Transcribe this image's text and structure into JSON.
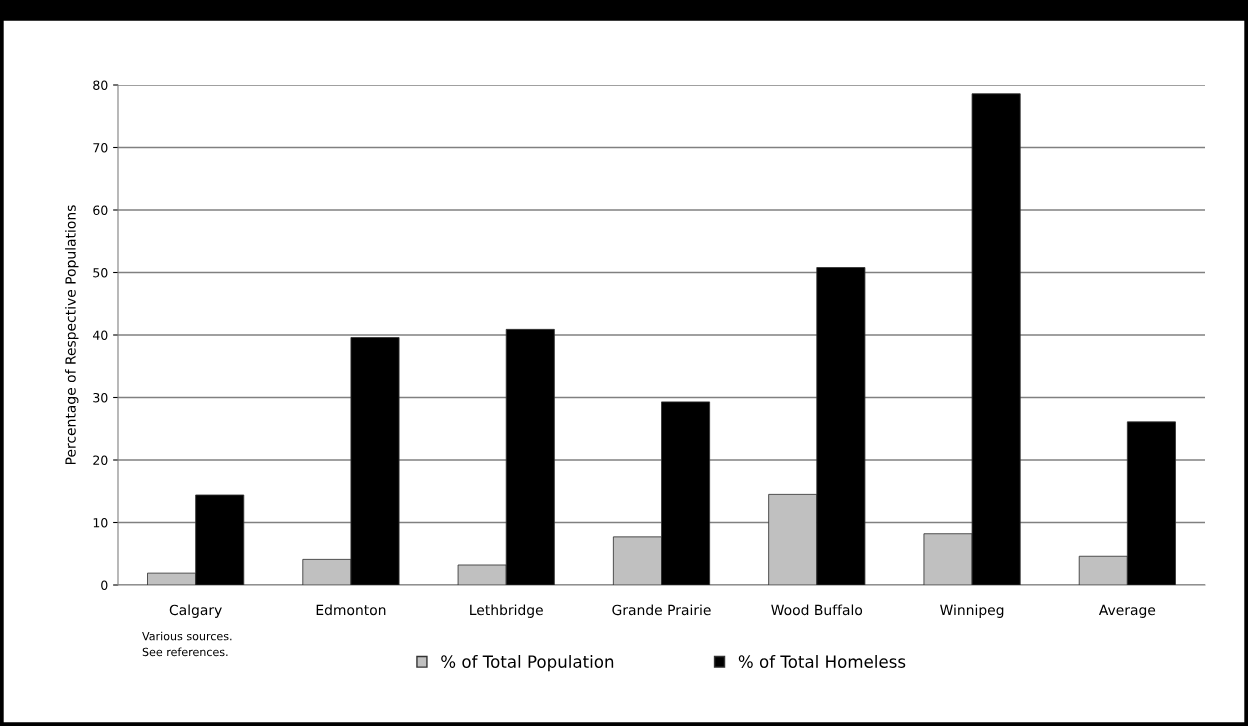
{
  "chart_data": {
    "type": "bar",
    "ylabel": "Percentage of Respective Populations",
    "categories": [
      "Calgary",
      "Edmonton",
      "Lethbridge",
      "Grande Prairie",
      "Wood Buffalo",
      "Winnipeg",
      "Average"
    ],
    "series": [
      {
        "name": "% of Total Population",
        "color": "#c0c0c0",
        "values": [
          1.9,
          4.1,
          3.2,
          7.7,
          14.5,
          8.2,
          4.6
        ]
      },
      {
        "name": "% of Total Homeless",
        "color": "#000000",
        "values": [
          14.4,
          39.6,
          40.9,
          29.3,
          50.8,
          78.6,
          26.1
        ]
      }
    ],
    "ylim": [
      0,
      80
    ],
    "yticks": [
      0,
      10,
      20,
      30,
      40,
      50,
      60,
      70,
      80
    ],
    "grid": "y",
    "legend": "bottom",
    "annotations": [
      "Various sources.\nSee references."
    ]
  }
}
